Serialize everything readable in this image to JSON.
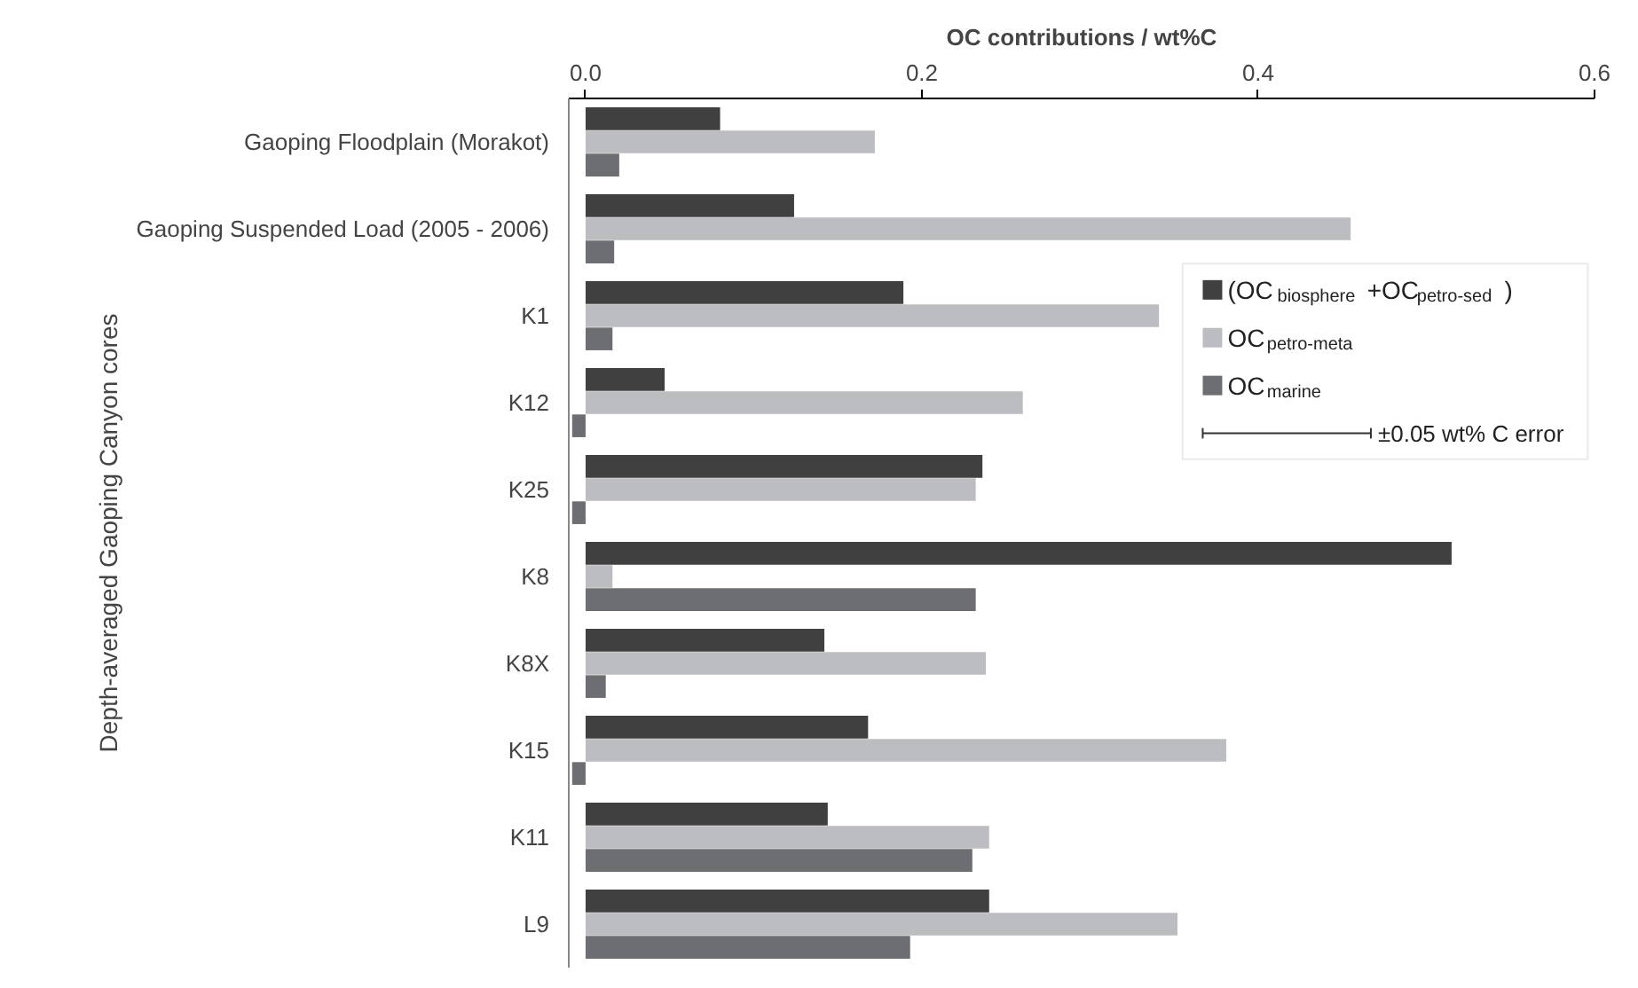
{
  "chart_data": {
    "type": "bar",
    "orientation": "horizontal",
    "xlabel": "OC contributions / wt%C",
    "ylabel": "Depth-averaged Gaoping Canyon cores",
    "categories": [
      "Gaoping Floodplain (Morakot)",
      "Gaoping Suspended Load (2005 - 2006)",
      "K1",
      "K12",
      "K25",
      "K8",
      "K8X",
      "K15",
      "K11",
      "L9"
    ],
    "series": [
      {
        "name": "(OC$_{biosphere}$+OC$_{petro-sed}$)",
        "color": "#404040",
        "values": [
          0.08,
          0.124,
          0.189,
          0.047,
          0.236,
          0.515,
          0.142,
          0.168,
          0.144,
          0.24
        ]
      },
      {
        "name": "OC$_{petro-meta}$",
        "color": "#bcbdc0",
        "values": [
          0.172,
          0.455,
          0.341,
          0.26,
          0.232,
          0.016,
          0.238,
          0.381,
          0.24,
          0.352
        ]
      },
      {
        "name": "OC$_{marine}$",
        "color": "#6d6e71",
        "values": [
          0.02,
          0.017,
          0.016,
          -0.008,
          -0.008,
          0.232,
          0.012,
          -0.008,
          0.23,
          0.193
        ]
      }
    ],
    "xlim": [
      -0.01,
      0.6
    ],
    "xticks": [
      {
        "value": 0,
        "label": "0.0"
      },
      0.2,
      0.4,
      0.6
    ],
    "annotations": [
      "±0.05 wt% C error"
    ],
    "legend": "right",
    "grid": false
  }
}
